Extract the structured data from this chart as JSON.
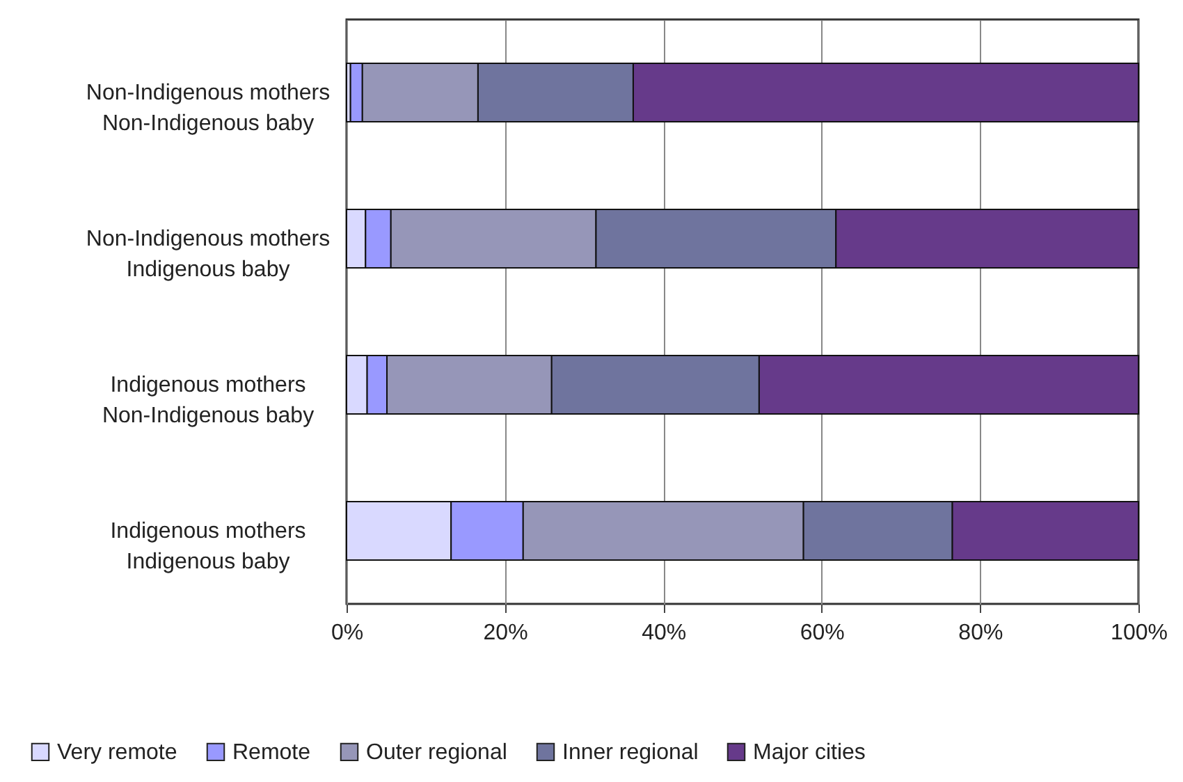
{
  "chart_data": {
    "type": "bar",
    "orientation": "horizontal",
    "stacked": true,
    "categories": [
      "Non-Indigenous mothers\nNon-Indigenous baby",
      "Non-Indigenous mothers\nIndigenous baby",
      "Indigenous mothers\nNon-Indigenous baby",
      "Indigenous mothers\nIndigenous baby"
    ],
    "series": [
      {
        "name": "Very remote",
        "color": "#d9d9ff",
        "values": [
          0.5,
          2.4,
          2.6,
          13.2
        ]
      },
      {
        "name": "Remote",
        "color": "#9999ff",
        "values": [
          1.5,
          3.2,
          2.5,
          9.1
        ]
      },
      {
        "name": "Outer regional",
        "color": "#9696b8",
        "values": [
          14.6,
          25.9,
          20.8,
          35.4
        ]
      },
      {
        "name": "Inner regional",
        "color": "#6f749e",
        "values": [
          19.6,
          30.3,
          26.2,
          18.8
        ]
      },
      {
        "name": "Major cities",
        "color": "#663a8a",
        "values": [
          63.8,
          38.2,
          47.9,
          23.5
        ]
      }
    ],
    "xlim": [
      0,
      100
    ],
    "xticks": [
      {
        "value": 0,
        "label": "0%"
      },
      {
        "value": 20,
        "label": "20%"
      },
      {
        "value": 40,
        "label": "40%"
      },
      {
        "value": 60,
        "label": "60%"
      },
      {
        "value": 80,
        "label": "80%"
      },
      {
        "value": 100,
        "label": "100%"
      }
    ],
    "grid": "x",
    "legend": "bottom"
  }
}
